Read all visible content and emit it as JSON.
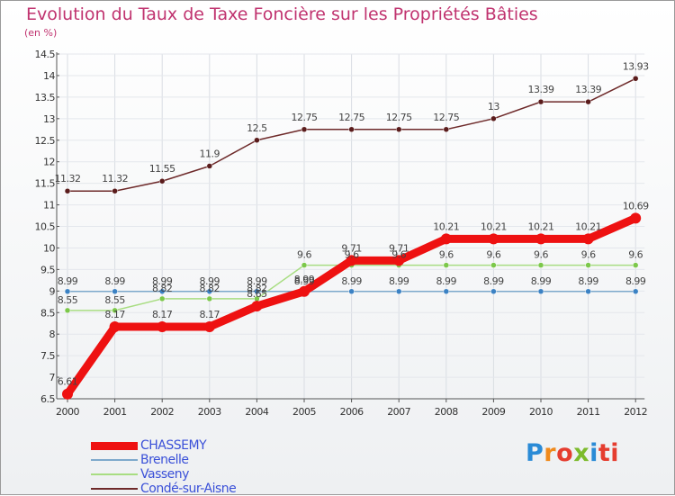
{
  "chart_data": {
    "type": "line",
    "title": "Evolution du Taux de Taxe Foncière sur les Propriétés Bâties",
    "unit_label": "(en %)",
    "categories": [
      "2000",
      "2001",
      "2002",
      "2003",
      "2004",
      "2005",
      "2006",
      "2007",
      "2008",
      "2009",
      "2010",
      "2011",
      "2012"
    ],
    "ylim": [
      6.5,
      14.5
    ],
    "y_ticks": [
      "6.5",
      "7",
      "7.5",
      "8",
      "8.5",
      "9",
      "9.5",
      "10",
      "10.5",
      "11",
      "11.5",
      "12",
      "12.5",
      "13",
      "13.5",
      "14",
      "14.5"
    ],
    "series": [
      {
        "name": "CHASSEMY",
        "color": "#ee1111",
        "values": [
          6.61,
          8.17,
          8.17,
          8.17,
          8.65,
          8.99,
          9.71,
          9.71,
          10.21,
          10.21,
          10.21,
          10.21,
          10.69
        ],
        "labels": [
          "6.61",
          "8.17",
          "8.17",
          "8.17",
          "8.65",
          "8.99",
          "9.71",
          "9.71",
          "10.21",
          "10.21",
          "10.21",
          "10.21",
          "10.69"
        ]
      },
      {
        "name": "Brenelle",
        "color": "#7ea9cc",
        "values": [
          8.99,
          8.99,
          8.99,
          8.99,
          8.99,
          8.99,
          8.99,
          8.99,
          8.99,
          8.99,
          8.99,
          8.99,
          8.99
        ],
        "labels": [
          "8.99",
          "8.99",
          "8.99",
          "8.99",
          "8.99",
          "8.99",
          "8.99",
          "8.99",
          "8.99",
          "8.99",
          "8.99",
          "8.99",
          "8.99"
        ]
      },
      {
        "name": "Vasseny",
        "color": "#a8dd82",
        "values": [
          8.55,
          8.55,
          8.82,
          8.82,
          8.82,
          9.6,
          9.6,
          9.6,
          9.6,
          9.6,
          9.6,
          9.6,
          9.6
        ],
        "labels": [
          "8.55",
          "8.55",
          "8.82",
          "8.82",
          "8.82",
          "9.6",
          "9.6",
          "9.6",
          "9.6",
          "9.6",
          "9.6",
          "9.6",
          "9.6"
        ]
      },
      {
        "name": "Condé-sur-Aisne",
        "color": "#6e2a2a",
        "values": [
          11.32,
          11.32,
          11.55,
          11.9,
          12.5,
          12.75,
          12.75,
          12.75,
          12.75,
          13,
          13.39,
          13.39,
          13.93
        ],
        "labels": [
          "11.32",
          "11.32",
          "11.55",
          "11.9",
          "12.5",
          "12.75",
          "12.75",
          "12.75",
          "12.75",
          "13",
          "13.39",
          "13.39",
          "13.93"
        ]
      }
    ]
  },
  "legend": [
    {
      "label": "CHASSEMY",
      "color": "#ee1111"
    },
    {
      "label": "Brenelle",
      "color": "#7ea9cc"
    },
    {
      "label": "Vasseny",
      "color": "#a8dd82"
    },
    {
      "label": "Condé-sur-Aisne",
      "color": "#6e2a2a"
    }
  ],
  "logo": {
    "letters": [
      "P",
      "r",
      "o",
      "x",
      "i",
      "ti"
    ]
  }
}
